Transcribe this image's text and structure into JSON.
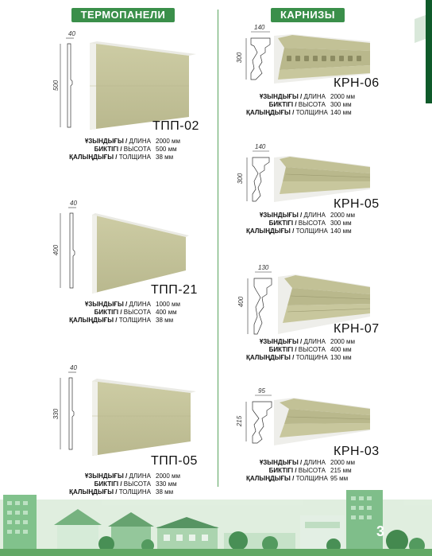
{
  "headers": {
    "left": "ТЕРМОПАНЕЛИ",
    "right": "КАРНИЗЫ"
  },
  "spec_labels": {
    "length_kk": "ҰЗЫНДЫҒЫ /",
    "length_ru": "ДЛИНА",
    "height_kk": "БИКТІГІ /",
    "height_ru": "ВЫСОТА",
    "thickness_kk": "ҚАЛЫҢДЫҒЫ /",
    "thickness_ru": "ТОЛЩИНА"
  },
  "panels": [
    {
      "code": "ТПП-02",
      "dim_top": "40",
      "dim_side": "500",
      "length": "2000 мм",
      "height": "500 мм",
      "thickness": "38 мм"
    },
    {
      "code": "ТПП-21",
      "dim_top": "40",
      "dim_side": "400",
      "length": "1000 мм",
      "height": "400 мм",
      "thickness": "38 мм"
    },
    {
      "code": "ТПП-05",
      "dim_top": "40",
      "dim_side": "330",
      "length": "2000 мм",
      "height": "330 мм",
      "thickness": "38 мм"
    }
  ],
  "cornices": [
    {
      "code": "КРН-06",
      "dim_top": "140",
      "dim_side": "300",
      "length": "2000 мм",
      "height": "300 мм",
      "thickness": "140 мм"
    },
    {
      "code": "КРН-05",
      "dim_top": "140",
      "dim_side": "300",
      "length": "2000 мм",
      "height": "300 мм",
      "thickness": "140 мм"
    },
    {
      "code": "КРН-07",
      "dim_top": "130",
      "dim_side": "400",
      "length": "2000 мм",
      "height": "400 мм",
      "thickness": "130 мм"
    },
    {
      "code": "КРН-03",
      "dim_top": "95",
      "dim_side": "215",
      "length": "2000 мм",
      "height": "215 мм",
      "thickness": "95 мм"
    }
  ],
  "page_number": "3",
  "colors": {
    "green": "#3a8f4a",
    "panel": "#c4c39a",
    "panel_dark": "#a9a87d",
    "foam": "#eeeeea"
  }
}
